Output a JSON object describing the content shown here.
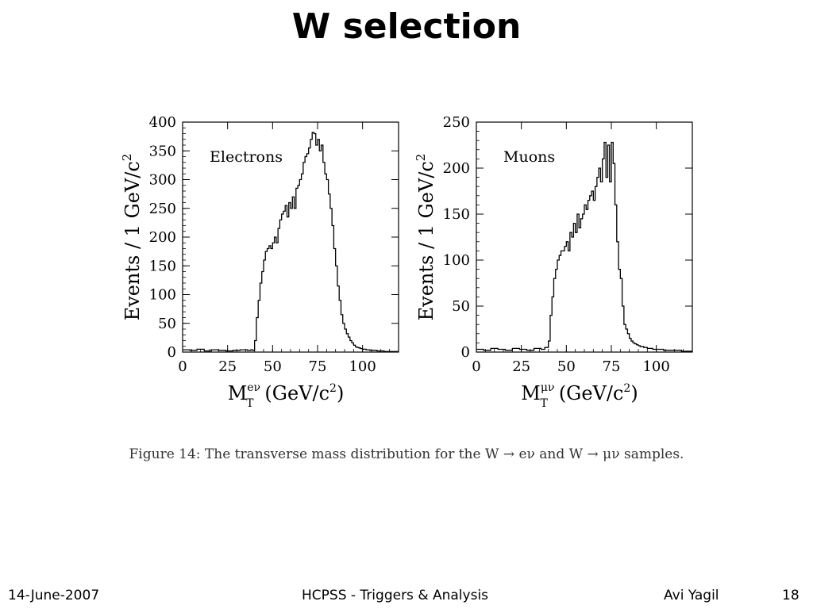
{
  "title": "W selection",
  "caption": "Figure 14: The transverse mass distribution for the W → eν and W → μν samples.",
  "footer": {
    "date": "14-June-2007",
    "talk": "HCPSS - Triggers & Analysis",
    "author": "Avi Yagil",
    "page": "18"
  },
  "chart_data": [
    {
      "type": "histogram",
      "label": "Electrons",
      "ylabel_main": "Events / 1 GeV/c",
      "ylabel_sup": "2",
      "xlabel_var": "M",
      "xlabel_sub": "T",
      "xlabel_sup": "eν",
      "xlabel_unit": "(GeV/c",
      "xlabel_unit_sup": "2",
      "xlabel_close": ")",
      "xlim": [
        0,
        120
      ],
      "ylim": [
        0,
        400
      ],
      "xticks": [
        0,
        25,
        50,
        75,
        100
      ],
      "yticks": [
        0,
        50,
        100,
        150,
        200,
        250,
        300,
        350,
        400
      ],
      "grid": false,
      "x": [
        0,
        4,
        8,
        12,
        16,
        20,
        24,
        28,
        32,
        36,
        38,
        39,
        40,
        41,
        42,
        43,
        44,
        45,
        46,
        47,
        48,
        49,
        50,
        51,
        52,
        53,
        54,
        55,
        56,
        57,
        58,
        59,
        60,
        61,
        62,
        63,
        64,
        65,
        66,
        67,
        68,
        69,
        70,
        71,
        72,
        73,
        74,
        75,
        76,
        77,
        78,
        79,
        80,
        81,
        82,
        83,
        84,
        85,
        86,
        87,
        88,
        89,
        90,
        91,
        92,
        93,
        94,
        95,
        96,
        97,
        98,
        99,
        100,
        102,
        104,
        106,
        108,
        110,
        112,
        114,
        116,
        118
      ],
      "values": [
        4,
        3,
        5,
        2,
        4,
        3,
        2,
        3,
        4,
        3,
        4,
        3,
        20,
        60,
        90,
        120,
        140,
        160,
        175,
        180,
        185,
        180,
        190,
        200,
        190,
        215,
        230,
        240,
        245,
        255,
        235,
        260,
        250,
        270,
        250,
        285,
        290,
        300,
        310,
        330,
        340,
        345,
        355,
        370,
        382,
        380,
        360,
        370,
        350,
        360,
        330,
        310,
        300,
        275,
        250,
        220,
        180,
        150,
        115,
        90,
        65,
        50,
        40,
        32,
        26,
        20,
        16,
        12,
        9,
        8,
        7,
        6,
        5,
        4,
        3,
        3,
        2,
        2,
        1,
        1,
        1,
        1
      ]
    },
    {
      "type": "histogram",
      "label": "Muons",
      "ylabel_main": "Events / 1 GeV/c",
      "ylabel_sup": "2",
      "xlabel_var": "M",
      "xlabel_sub": "T",
      "xlabel_sup": "μν",
      "xlabel_unit": "(GeV/c",
      "xlabel_unit_sup": "2",
      "xlabel_close": ")",
      "xlim": [
        0,
        120
      ],
      "ylim": [
        0,
        250
      ],
      "xticks": [
        0,
        25,
        50,
        75,
        100
      ],
      "yticks": [
        0,
        50,
        100,
        150,
        200,
        250
      ],
      "grid": false,
      "x": [
        0,
        4,
        8,
        12,
        16,
        20,
        24,
        28,
        32,
        36,
        38,
        40,
        41,
        42,
        43,
        44,
        45,
        46,
        47,
        48,
        49,
        50,
        51,
        52,
        53,
        54,
        55,
        56,
        57,
        58,
        59,
        60,
        61,
        62,
        63,
        64,
        65,
        66,
        67,
        68,
        69,
        70,
        71,
        72,
        73,
        74,
        75,
        76,
        77,
        78,
        79,
        80,
        81,
        82,
        83,
        84,
        85,
        86,
        87,
        88,
        89,
        90,
        91,
        92,
        93,
        94,
        95,
        96,
        97,
        98,
        99,
        100,
        102,
        104,
        106,
        108,
        110,
        112,
        114,
        116,
        118
      ],
      "values": [
        3,
        2,
        4,
        3,
        2,
        4,
        3,
        2,
        4,
        3,
        5,
        12,
        40,
        60,
        80,
        90,
        100,
        105,
        110,
        110,
        115,
        120,
        110,
        130,
        125,
        140,
        130,
        150,
        135,
        145,
        150,
        160,
        155,
        165,
        170,
        175,
        165,
        180,
        190,
        200,
        185,
        210,
        228,
        190,
        225,
        185,
        228,
        205,
        160,
        120,
        90,
        80,
        50,
        30,
        25,
        20,
        15,
        12,
        10,
        9,
        8,
        7,
        6,
        6,
        5,
        5,
        4,
        4,
        4,
        3,
        3,
        3,
        3,
        2,
        2,
        2,
        2,
        2,
        1,
        1,
        1
      ]
    }
  ]
}
